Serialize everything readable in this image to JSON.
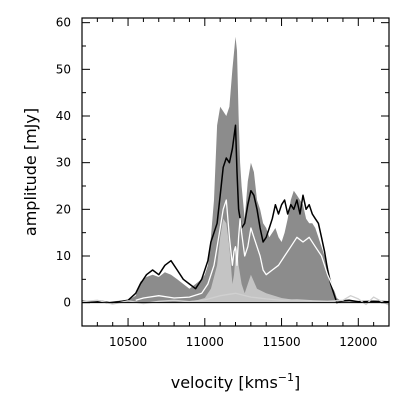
{
  "chart_data": {
    "type": "area",
    "xlabel": "velocity",
    "xunit_base": "kms",
    "xunit_exp": "−1",
    "ylabel": "amplitude [mJy]",
    "xlim": [
      10200,
      12200
    ],
    "ylim": [
      -5,
      61
    ],
    "xticks": [
      10500,
      11000,
      11500,
      12000
    ],
    "xtick_labels": [
      "10500",
      "11000",
      "11500",
      "12000"
    ],
    "yticks": [
      0,
      10,
      20,
      30,
      40,
      50,
      60
    ],
    "ytick_labels": [
      "0",
      "10",
      "20",
      "30",
      "40",
      "50",
      "60"
    ],
    "grid": false,
    "series": [
      {
        "style": "dark-gray-fill",
        "color": "#8c8c8c",
        "x": [
          10200,
          10260,
          10320,
          10380,
          10440,
          10500,
          10550,
          10580,
          10620,
          10660,
          10700,
          10740,
          10780,
          10820,
          10860,
          10900,
          10940,
          10980,
          11000,
          11020,
          11040,
          11060,
          11080,
          11100,
          11120,
          11140,
          11160,
          11180,
          11200,
          11210,
          11220,
          11230,
          11240,
          11260,
          11280,
          11300,
          11320,
          11340,
          11360,
          11380,
          11400,
          11420,
          11440,
          11460,
          11480,
          11500,
          11520,
          11540,
          11560,
          11580,
          11600,
          11620,
          11640,
          11660,
          11680,
          11700,
          11720,
          11740,
          11760,
          11780,
          11800,
          11820,
          11840,
          11860,
          11880,
          11900,
          11940,
          12000,
          12100,
          12200
        ],
        "y": [
          0.5,
          0.3,
          0.5,
          0.2,
          0.4,
          0.5,
          1.5,
          4.5,
          5.5,
          6,
          5.5,
          6.5,
          6,
          5,
          4,
          3,
          4,
          5,
          6,
          8,
          14,
          22,
          38,
          42,
          41,
          40,
          42,
          50,
          57,
          54,
          40,
          30,
          25,
          18,
          26,
          30,
          28,
          22,
          20,
          17,
          16,
          14,
          15,
          16,
          14,
          13,
          15,
          18,
          22,
          24,
          23,
          22,
          21,
          18,
          17,
          17,
          16,
          14,
          12,
          10,
          8,
          5,
          3,
          1,
          0.5,
          0.5,
          0.3,
          0.4,
          0.3,
          0.3
        ]
      },
      {
        "style": "light-gray-fill",
        "color": "#c4c4c4",
        "x": [
          10200,
          10400,
          10600,
          10800,
          10950,
          11000,
          11040,
          11080,
          11100,
          11120,
          11140,
          11160,
          11170,
          11180,
          11190,
          11200,
          11210,
          11220,
          11240,
          11260,
          11280,
          11300,
          11340,
          11400,
          11500,
          11600,
          11700,
          11800,
          12000,
          12200
        ],
        "y": [
          0,
          0,
          0,
          0,
          0.5,
          1,
          3,
          8,
          14,
          18,
          17,
          12,
          8,
          4,
          6,
          10,
          12,
          8,
          4,
          2,
          4,
          6,
          3,
          2,
          1,
          0.5,
          0.5,
          0.3,
          0,
          0
        ]
      },
      {
        "style": "black-line",
        "color": "#000000",
        "x": [
          10200,
          10260,
          10320,
          10380,
          10440,
          10500,
          10550,
          10580,
          10620,
          10660,
          10700,
          10740,
          10780,
          10820,
          10860,
          10900,
          10940,
          10980,
          11000,
          11020,
          11040,
          11060,
          11080,
          11100,
          11120,
          11140,
          11160,
          11180,
          11200,
          11210,
          11220,
          11230,
          11240,
          11260,
          11280,
          11300,
          11320,
          11340,
          11360,
          11380,
          11400,
          11420,
          11440,
          11460,
          11480,
          11500,
          11520,
          11540,
          11560,
          11580,
          11600,
          11620,
          11640,
          11660,
          11680,
          11700,
          11720,
          11740,
          11760,
          11780,
          11800,
          11820,
          11840,
          11860,
          11880,
          11900,
          11940,
          12000,
          12100,
          12200
        ],
        "y": [
          0.3,
          0.1,
          0.2,
          0,
          0.2,
          0.5,
          2,
          4,
          6,
          7,
          6,
          8,
          9,
          7,
          5,
          4,
          3,
          5,
          7,
          9,
          13,
          15,
          17,
          23,
          29,
          31,
          30,
          33,
          38,
          28,
          20,
          18,
          16,
          17,
          21,
          24,
          23,
          20,
          16,
          13,
          14,
          16,
          18,
          21,
          19,
          21,
          22,
          19,
          21,
          20,
          22,
          19,
          23,
          20,
          21,
          19,
          18,
          17,
          14,
          11,
          7,
          4,
          2,
          0,
          0.2,
          0.4,
          0.5,
          0.2,
          0.3,
          0.2
        ]
      },
      {
        "style": "white-line",
        "color": "#ffffff",
        "x": [
          10550,
          10600,
          10700,
          10800,
          10900,
          10980,
          11020,
          11060,
          11080,
          11100,
          11120,
          11140,
          11160,
          11180,
          11190,
          11200,
          11210,
          11220,
          11230,
          11240,
          11260,
          11280,
          11300,
          11320,
          11340,
          11360,
          11380,
          11400,
          11440,
          11480,
          11520,
          11560,
          11600,
          11640,
          11680,
          11720,
          11760,
          11800,
          11840,
          11880
        ],
        "y": [
          0.5,
          1,
          1.5,
          1,
          1.2,
          2,
          4,
          8,
          12,
          16,
          20,
          22,
          14,
          8,
          11,
          12,
          8,
          14,
          18,
          15,
          10,
          12,
          16,
          14,
          12,
          10,
          7,
          6,
          7,
          8,
          10,
          12,
          14,
          13,
          14,
          12,
          10,
          6,
          3,
          1
        ]
      },
      {
        "style": "light-gray-line",
        "color": "#d0d0d0",
        "x": [
          10200,
          10300,
          10400,
          10500,
          10600,
          10700,
          10800,
          10900,
          11000,
          11100,
          11200,
          11300,
          11400,
          11500,
          11600,
          11700,
          11800,
          11900,
          11950,
          12000,
          12050,
          12100,
          12150,
          12200
        ],
        "y": [
          0.2,
          0.5,
          -0.3,
          0.4,
          -0.2,
          0.3,
          0.5,
          0.2,
          0.6,
          1.5,
          2,
          1.2,
          0.8,
          0.5,
          0.6,
          0.4,
          0.3,
          0.5,
          1.5,
          0.8,
          -0.4,
          1.2,
          0.3,
          -0.5
        ]
      }
    ]
  }
}
